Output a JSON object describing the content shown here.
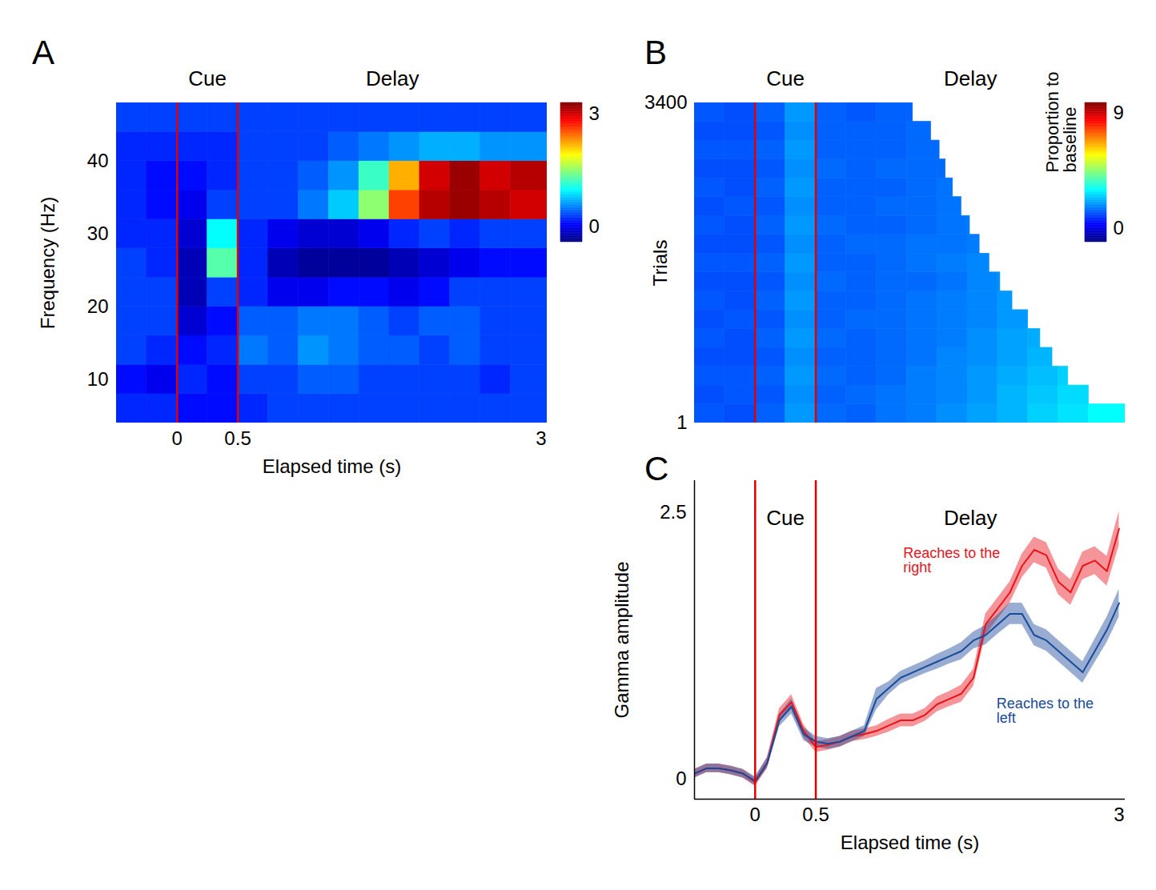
{
  "chart_data": [
    {
      "type": "heatmap",
      "panel_label": "A",
      "xlabel": "Elapsed time (s)",
      "ylabel": "Frequency (Hz)",
      "xlim": [
        -0.5,
        3.05
      ],
      "ylim": [
        4,
        48
      ],
      "xticks": [
        0,
        0.5,
        3
      ],
      "yticks": [
        10,
        20,
        30,
        40
      ],
      "epochs": [
        {
          "label": "Cue",
          "start": 0
        },
        {
          "label": "Delay",
          "start": 0.5
        }
      ],
      "x_bins": [
        -0.5,
        -0.25,
        0,
        0.25,
        0.5,
        0.75,
        1,
        1.25,
        1.5,
        1.75,
        2,
        2.25,
        2.5,
        2.75,
        3.05
      ],
      "y_bins": [
        4,
        8,
        12,
        16,
        20,
        24,
        28,
        32,
        36,
        40,
        44,
        48
      ],
      "cells": [
        [
          0.2,
          0.2,
          0.1,
          0.1,
          0.2,
          0.3,
          0.3,
          0.3,
          0.3,
          0.3,
          0.3,
          0.3,
          0.3,
          0.3
        ],
        [
          0.1,
          0.0,
          0.2,
          0.1,
          0.3,
          0.3,
          0.4,
          0.4,
          0.3,
          0.3,
          0.3,
          0.3,
          0.2,
          0.3
        ],
        [
          0.3,
          0.2,
          0.1,
          0.2,
          0.5,
          0.4,
          0.6,
          0.5,
          0.4,
          0.4,
          0.3,
          0.4,
          0.3,
          0.3
        ],
        [
          0.3,
          0.3,
          -0.1,
          0.1,
          0.4,
          0.4,
          0.5,
          0.5,
          0.4,
          0.3,
          0.4,
          0.4,
          0.3,
          0.3
        ],
        [
          0.3,
          0.3,
          -0.2,
          0.3,
          0.2,
          0.0,
          0.0,
          0.1,
          0.1,
          0.0,
          0.1,
          0.3,
          0.3,
          0.3
        ],
        [
          0.3,
          0.2,
          -0.2,
          1.3,
          0.2,
          -0.2,
          -0.3,
          -0.3,
          -0.3,
          -0.2,
          -0.1,
          0.0,
          0.1,
          0.1
        ],
        [
          0.2,
          0.2,
          -0.1,
          1.0,
          0.2,
          0.0,
          -0.1,
          -0.1,
          0.0,
          0.2,
          0.3,
          0.2,
          0.3,
          0.3
        ],
        [
          0.2,
          0.1,
          0.0,
          0.3,
          0.3,
          0.3,
          0.5,
          0.8,
          1.5,
          2.6,
          3.1,
          3.2,
          3.1,
          3.0
        ],
        [
          0.2,
          0.1,
          0.1,
          0.2,
          0.3,
          0.3,
          0.4,
          0.6,
          1.2,
          2.2,
          3.0,
          3.2,
          3.0,
          3.1
        ],
        [
          0.2,
          0.2,
          0.2,
          0.2,
          0.3,
          0.3,
          0.3,
          0.4,
          0.5,
          0.6,
          0.7,
          0.7,
          0.6,
          0.6
        ],
        [
          0.3,
          0.3,
          0.3,
          0.3,
          0.3,
          0.3,
          0.3,
          0.3,
          0.3,
          0.3,
          0.3,
          0.3,
          0.3,
          0.3
        ]
      ],
      "colorbar": {
        "range": [
          -0.4,
          3.3
        ],
        "ticks": [
          0,
          3
        ]
      }
    },
    {
      "type": "heatmap",
      "panel_label": "B",
      "ylabel": "Trials",
      "tick_labels": "y",
      "xlim": [
        -0.5,
        3.05
      ],
      "ylim": [
        1,
        3400
      ],
      "yticks": [
        1,
        3400
      ],
      "epochs": [
        {
          "label": "Cue",
          "start": 0
        },
        {
          "label": "Delay",
          "start": 0.5
        }
      ],
      "x_bins": [
        -0.5,
        -0.25,
        0,
        0.25,
        0.5,
        0.75,
        1,
        1.25,
        1.5,
        1.75,
        2,
        2.25,
        2.5,
        2.75,
        3.05
      ],
      "y_bins": [
        1,
        200,
        400,
        600,
        800,
        1000,
        1200,
        1400,
        1600,
        1800,
        2000,
        2200,
        2400,
        2600,
        2800,
        3000,
        3200,
        3400
      ],
      "row_ends": [
        3.05,
        2.75,
        2.58,
        2.45,
        2.35,
        2.25,
        2.12,
        2.02,
        1.93,
        1.85,
        1.77,
        1.7,
        1.63,
        1.57,
        1.52,
        1.45,
        1.3
      ],
      "cells": [
        [
          1.2,
          1.1,
          1.3,
          1.9,
          1.4,
          1.3,
          1.5,
          1.6,
          1.8,
          2.0,
          2.2,
          2.5,
          2.7,
          3.0
        ],
        [
          1.1,
          1.2,
          1.2,
          1.8,
          1.3,
          1.4,
          1.5,
          1.6,
          1.7,
          1.9,
          2.2,
          2.4,
          2.6,
          null
        ],
        [
          1.2,
          1.2,
          1.3,
          1.9,
          1.4,
          1.3,
          1.4,
          1.6,
          1.7,
          1.9,
          2.1,
          2.3,
          2.5,
          null
        ],
        [
          1.1,
          1.1,
          1.2,
          1.8,
          1.3,
          1.3,
          1.4,
          1.5,
          1.7,
          1.8,
          2.0,
          2.2,
          null,
          null
        ],
        [
          1.2,
          1.1,
          1.3,
          1.9,
          1.4,
          1.3,
          1.4,
          1.5,
          1.6,
          1.8,
          2.0,
          2.1,
          null,
          null
        ],
        [
          1.1,
          1.2,
          1.2,
          1.8,
          1.3,
          1.4,
          1.4,
          1.5,
          1.6,
          1.7,
          1.9,
          null,
          null,
          null
        ],
        [
          1.2,
          1.1,
          1.3,
          1.9,
          1.3,
          1.3,
          1.4,
          1.5,
          1.6,
          1.7,
          1.9,
          null,
          null,
          null
        ],
        [
          1.1,
          1.1,
          1.2,
          1.8,
          1.4,
          1.3,
          1.4,
          1.4,
          1.5,
          1.7,
          1.8,
          null,
          null,
          null
        ],
        [
          1.2,
          1.2,
          1.3,
          1.9,
          1.3,
          1.3,
          1.4,
          1.5,
          1.6,
          1.7,
          null,
          null,
          null,
          null
        ],
        [
          1.1,
          1.1,
          1.2,
          1.8,
          1.3,
          1.4,
          1.4,
          1.5,
          1.5,
          1.6,
          null,
          null,
          null,
          null
        ],
        [
          1.2,
          1.1,
          1.3,
          1.9,
          1.4,
          1.3,
          1.3,
          1.4,
          1.5,
          1.6,
          null,
          null,
          null,
          null
        ],
        [
          1.1,
          1.2,
          1.2,
          1.8,
          1.3,
          1.3,
          1.4,
          1.4,
          1.5,
          null,
          null,
          null,
          null,
          null
        ],
        [
          1.2,
          1.1,
          1.3,
          1.9,
          1.3,
          1.3,
          1.3,
          1.4,
          1.5,
          null,
          null,
          null,
          null,
          null
        ],
        [
          1.1,
          1.1,
          1.2,
          1.8,
          1.4,
          1.3,
          1.4,
          1.4,
          1.4,
          null,
          null,
          null,
          null,
          null
        ],
        [
          1.2,
          1.2,
          1.3,
          1.9,
          1.3,
          1.3,
          1.3,
          1.4,
          1.4,
          null,
          null,
          null,
          null,
          null
        ],
        [
          1.1,
          1.1,
          1.2,
          1.8,
          1.3,
          1.3,
          1.3,
          1.4,
          null,
          null,
          null,
          null,
          null,
          null
        ],
        [
          1.2,
          1.1,
          1.3,
          1.9,
          1.3,
          1.2,
          1.3,
          1.3,
          null,
          null,
          null,
          null,
          null,
          null
        ]
      ],
      "colorbar": {
        "label": "Proportion to baseline",
        "range": [
          -1.1,
          9.8
        ],
        "ticks": [
          0,
          9
        ]
      }
    },
    {
      "type": "line",
      "panel_label": "C",
      "xlabel": "Elapsed time (s)",
      "ylabel": "Gamma amplitude",
      "xlim": [
        -0.5,
        3.05
      ],
      "ylim": [
        -0.19,
        2.8
      ],
      "xticks": [
        0,
        0.5,
        3
      ],
      "yticks": [
        0,
        2.5
      ],
      "epochs": [
        {
          "label": "Cue",
          "start": 0
        },
        {
          "label": "Delay",
          "start": 0.5
        }
      ],
      "x": [
        -0.5,
        -0.4,
        -0.3,
        -0.2,
        -0.1,
        0,
        0.1,
        0.2,
        0.3,
        0.4,
        0.5,
        0.6,
        0.7,
        0.8,
        0.9,
        1.0,
        1.1,
        1.2,
        1.3,
        1.4,
        1.5,
        1.6,
        1.7,
        1.8,
        1.9,
        2.0,
        2.1,
        2.2,
        2.3,
        2.4,
        2.5,
        2.6,
        2.7,
        2.8,
        2.9,
        3.0
      ],
      "series": [
        {
          "name": "Reaches to the right",
          "color": "#e8141c",
          "label_x": 1.22,
          "label_y": 2.05,
          "values": [
            0.05,
            0.1,
            0.1,
            0.08,
            0.05,
            -0.03,
            0.15,
            0.6,
            0.72,
            0.45,
            0.3,
            0.32,
            0.35,
            0.4,
            0.42,
            0.45,
            0.5,
            0.55,
            0.55,
            0.6,
            0.7,
            0.75,
            0.8,
            0.95,
            1.45,
            1.6,
            1.75,
            2.0,
            2.15,
            2.1,
            1.85,
            1.75,
            2.0,
            2.05,
            1.95,
            2.35
          ],
          "error": [
            0.04,
            0.04,
            0.04,
            0.04,
            0.04,
            0.04,
            0.05,
            0.06,
            0.07,
            0.06,
            0.05,
            0.05,
            0.05,
            0.05,
            0.05,
            0.05,
            0.06,
            0.06,
            0.06,
            0.06,
            0.07,
            0.07,
            0.08,
            0.08,
            0.1,
            0.1,
            0.1,
            0.11,
            0.12,
            0.12,
            0.12,
            0.12,
            0.13,
            0.13,
            0.14,
            0.16
          ]
        },
        {
          "name": "Reaches to the left",
          "color": "#1a4a9a",
          "label_x": 1.99,
          "label_y": 0.64,
          "values": [
            0.05,
            0.1,
            0.1,
            0.08,
            0.05,
            -0.02,
            0.15,
            0.55,
            0.68,
            0.42,
            0.35,
            0.33,
            0.35,
            0.4,
            0.45,
            0.75,
            0.85,
            0.95,
            1.0,
            1.05,
            1.1,
            1.15,
            1.2,
            1.3,
            1.35,
            1.45,
            1.55,
            1.55,
            1.35,
            1.3,
            1.2,
            1.1,
            1.0,
            1.2,
            1.4,
            1.65
          ],
          "error": [
            0.04,
            0.04,
            0.04,
            0.04,
            0.04,
            0.04,
            0.05,
            0.06,
            0.07,
            0.06,
            0.05,
            0.05,
            0.05,
            0.05,
            0.05,
            0.1,
            0.06,
            0.06,
            0.06,
            0.06,
            0.07,
            0.07,
            0.08,
            0.08,
            0.09,
            0.09,
            0.1,
            0.1,
            0.1,
            0.1,
            0.1,
            0.1,
            0.1,
            0.11,
            0.12,
            0.13
          ]
        }
      ]
    }
  ]
}
